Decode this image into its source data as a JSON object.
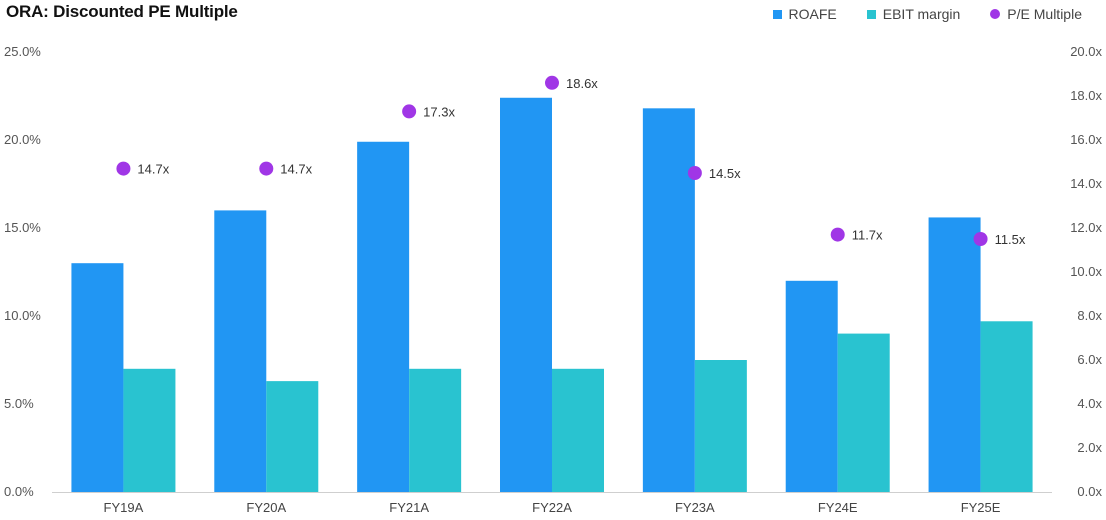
{
  "colors": {
    "roafe": "#2196F3",
    "ebit": "#29C3D0",
    "pe": "#A036E6"
  },
  "chart_data": {
    "type": "bar",
    "title": "ORA: Discounted PE Multiple",
    "categories": [
      "FY19A",
      "FY20A",
      "FY21A",
      "FY22A",
      "FY23A",
      "FY24E",
      "FY25E"
    ],
    "series": [
      {
        "name": "ROAFE",
        "kind": "bar",
        "axis": "left",
        "values": [
          13.0,
          16.0,
          19.9,
          22.4,
          21.8,
          12.0,
          15.6
        ]
      },
      {
        "name": "EBIT margin",
        "kind": "bar",
        "axis": "left",
        "values": [
          7.0,
          6.3,
          7.0,
          7.0,
          7.5,
          9.0,
          9.7
        ]
      },
      {
        "name": "P/E Multiple",
        "kind": "scatter",
        "axis": "right",
        "values": [
          14.7,
          14.7,
          17.3,
          18.6,
          14.5,
          11.7,
          11.5
        ],
        "labels": [
          "14.7x",
          "14.7x",
          "17.3x",
          "18.6x",
          "14.5x",
          "11.7x",
          "11.5x"
        ]
      }
    ],
    "y_left": {
      "min": 0,
      "max": 25,
      "ticks": [
        "0.0%",
        "5.0%",
        "10.0%",
        "15.0%",
        "20.0%",
        "25.0%"
      ]
    },
    "y_right": {
      "min": 0,
      "max": 20,
      "ticks": [
        "0.0x",
        "2.0x",
        "4.0x",
        "6.0x",
        "8.0x",
        "10.0x",
        "12.0x",
        "14.0x",
        "16.0x",
        "18.0x",
        "20.0x"
      ]
    },
    "legend": [
      "ROAFE",
      "EBIT margin",
      "P/E Multiple"
    ],
    "legend_position": "top-right",
    "grid": false
  }
}
